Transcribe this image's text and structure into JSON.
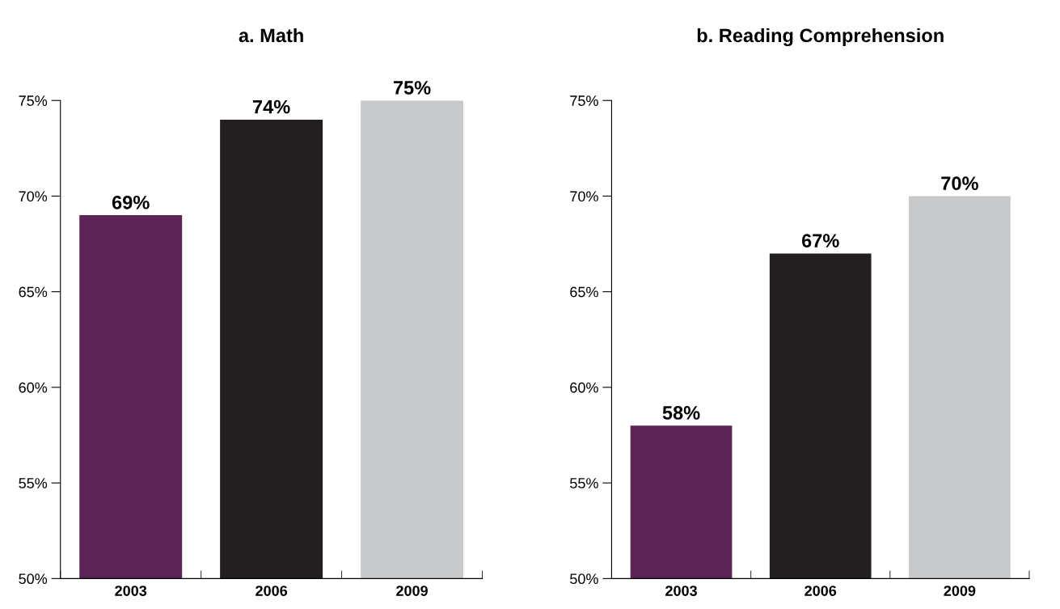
{
  "chart_data": [
    {
      "type": "bar",
      "title": "a. Math",
      "categories": [
        "2003",
        "2006",
        "2009"
      ],
      "values": [
        69,
        74,
        75
      ],
      "colors": [
        "#5c2357",
        "#231f20",
        "#c8c9cb"
      ],
      "value_labels": [
        "69%",
        "74%",
        "75%"
      ],
      "ylim": [
        50,
        75
      ],
      "yticks": [
        {
          "value": 50,
          "label": "50%"
        },
        {
          "value": 55,
          "label": "55%"
        },
        {
          "value": 60,
          "label": "60%"
        },
        {
          "value": 65,
          "label": "65%"
        },
        {
          "value": 70,
          "label": "70%"
        },
        {
          "value": 75,
          "label": "75%"
        }
      ],
      "grid": false,
      "legend": false
    },
    {
      "type": "bar",
      "title": "b. Reading Comprehension",
      "categories": [
        "2003",
        "2006",
        "2009"
      ],
      "values": [
        58,
        67,
        70
      ],
      "colors": [
        "#5c2357",
        "#231f20",
        "#c8c9cb"
      ],
      "value_labels": [
        "58%",
        "67%",
        "70%"
      ],
      "ylim": [
        50,
        75
      ],
      "yticks": [
        {
          "value": 50,
          "label": "50%"
        },
        {
          "value": 55,
          "label": "55%"
        },
        {
          "value": 60,
          "label": "60%"
        },
        {
          "value": 65,
          "label": "65%"
        },
        {
          "value": 70,
          "label": "70%"
        },
        {
          "value": 75,
          "label": "75%"
        }
      ],
      "grid": false,
      "legend": false
    }
  ]
}
